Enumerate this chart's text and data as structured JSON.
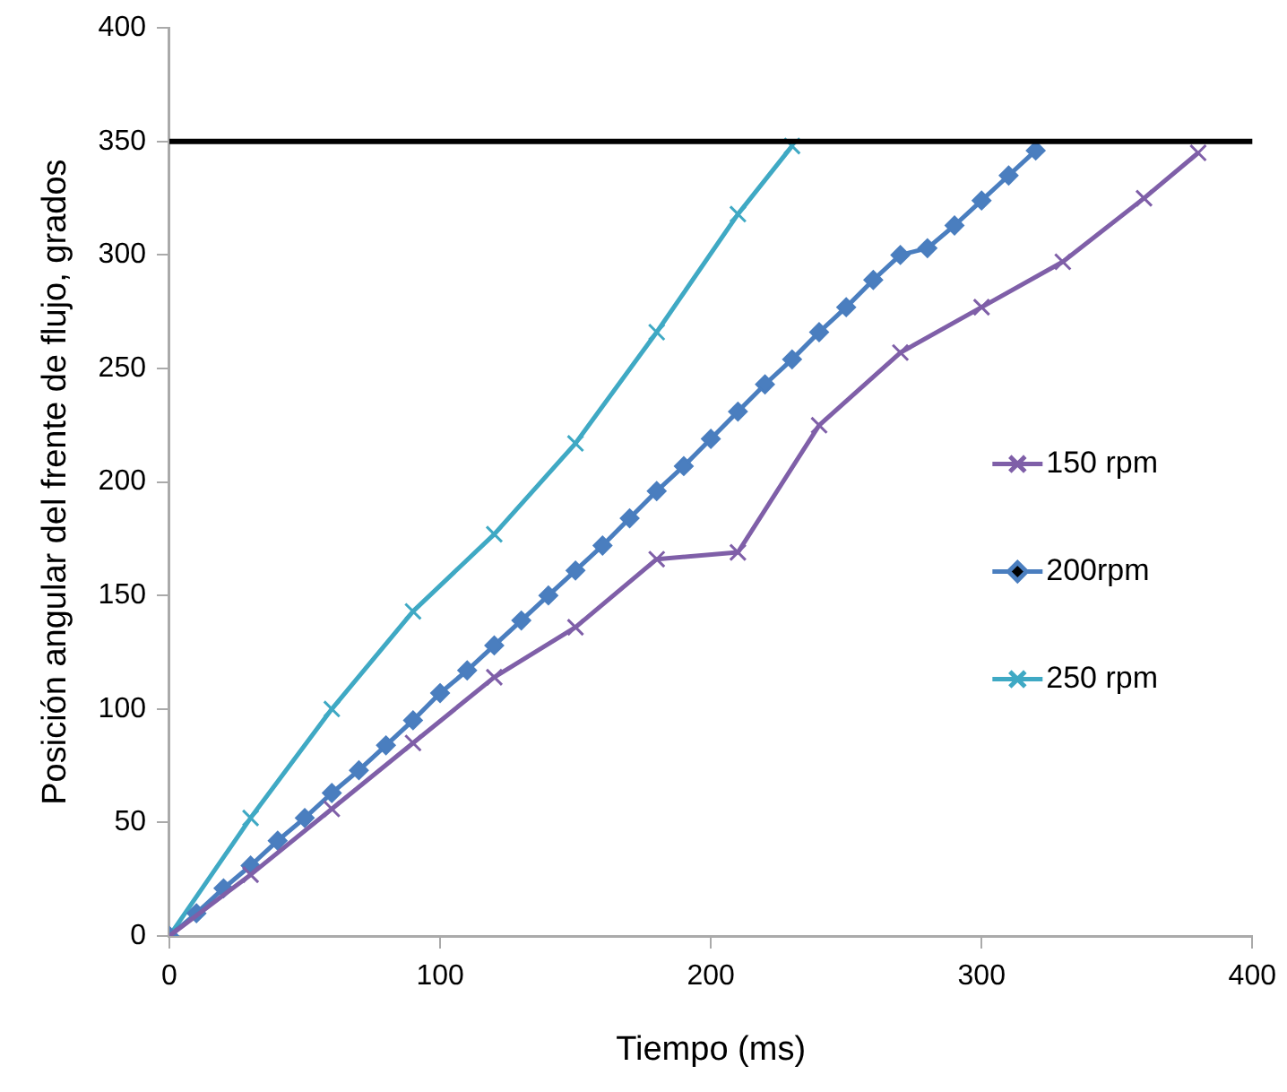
{
  "chart_data": {
    "type": "line",
    "xlabel": "Tiempo (ms)",
    "ylabel": "Posición angular del frente de flujo, grados",
    "xlim": [
      0,
      400
    ],
    "xticks": [
      0,
      100,
      200,
      300,
      400
    ],
    "ylim": [
      0,
      400
    ],
    "yticks": [
      0,
      50,
      100,
      150,
      200,
      250,
      300,
      350,
      400
    ],
    "grid": false,
    "legend": "right",
    "line_style": "solid",
    "ref_lines": [
      {
        "axis": "y",
        "value": 350,
        "color": "#000000"
      }
    ],
    "series": [
      {
        "name": "150 rpm",
        "color": "#7f5fa8",
        "marker": "cross",
        "x": [
          0,
          30,
          60,
          90,
          120,
          150,
          180,
          210,
          240,
          270,
          300,
          330,
          360,
          380
        ],
        "values": [
          0,
          27,
          56,
          85,
          114,
          136,
          166,
          169,
          225,
          257,
          277,
          297,
          325,
          345
        ]
      },
      {
        "name": "200rpm",
        "color": "#4a7ebf",
        "marker": "diamond",
        "x": [
          0,
          10,
          20,
          30,
          40,
          50,
          60,
          70,
          80,
          90,
          100,
          110,
          120,
          130,
          140,
          150,
          160,
          170,
          180,
          190,
          200,
          210,
          220,
          230,
          240,
          250,
          260,
          270,
          280,
          290,
          300,
          310,
          320
        ],
        "values": [
          0,
          10,
          21,
          31,
          42,
          52,
          63,
          73,
          84,
          95,
          107,
          117,
          128,
          139,
          150,
          161,
          172,
          184,
          196,
          207,
          219,
          231,
          243,
          254,
          266,
          277,
          289,
          300,
          303,
          313,
          324,
          335,
          346
        ]
      },
      {
        "name": "250 rpm",
        "color": "#3fa9c4",
        "marker": "cross",
        "x": [
          0,
          30,
          60,
          90,
          120,
          150,
          180,
          210,
          230
        ],
        "values": [
          0,
          52,
          100,
          143,
          177,
          217,
          266,
          318,
          348
        ]
      }
    ]
  }
}
